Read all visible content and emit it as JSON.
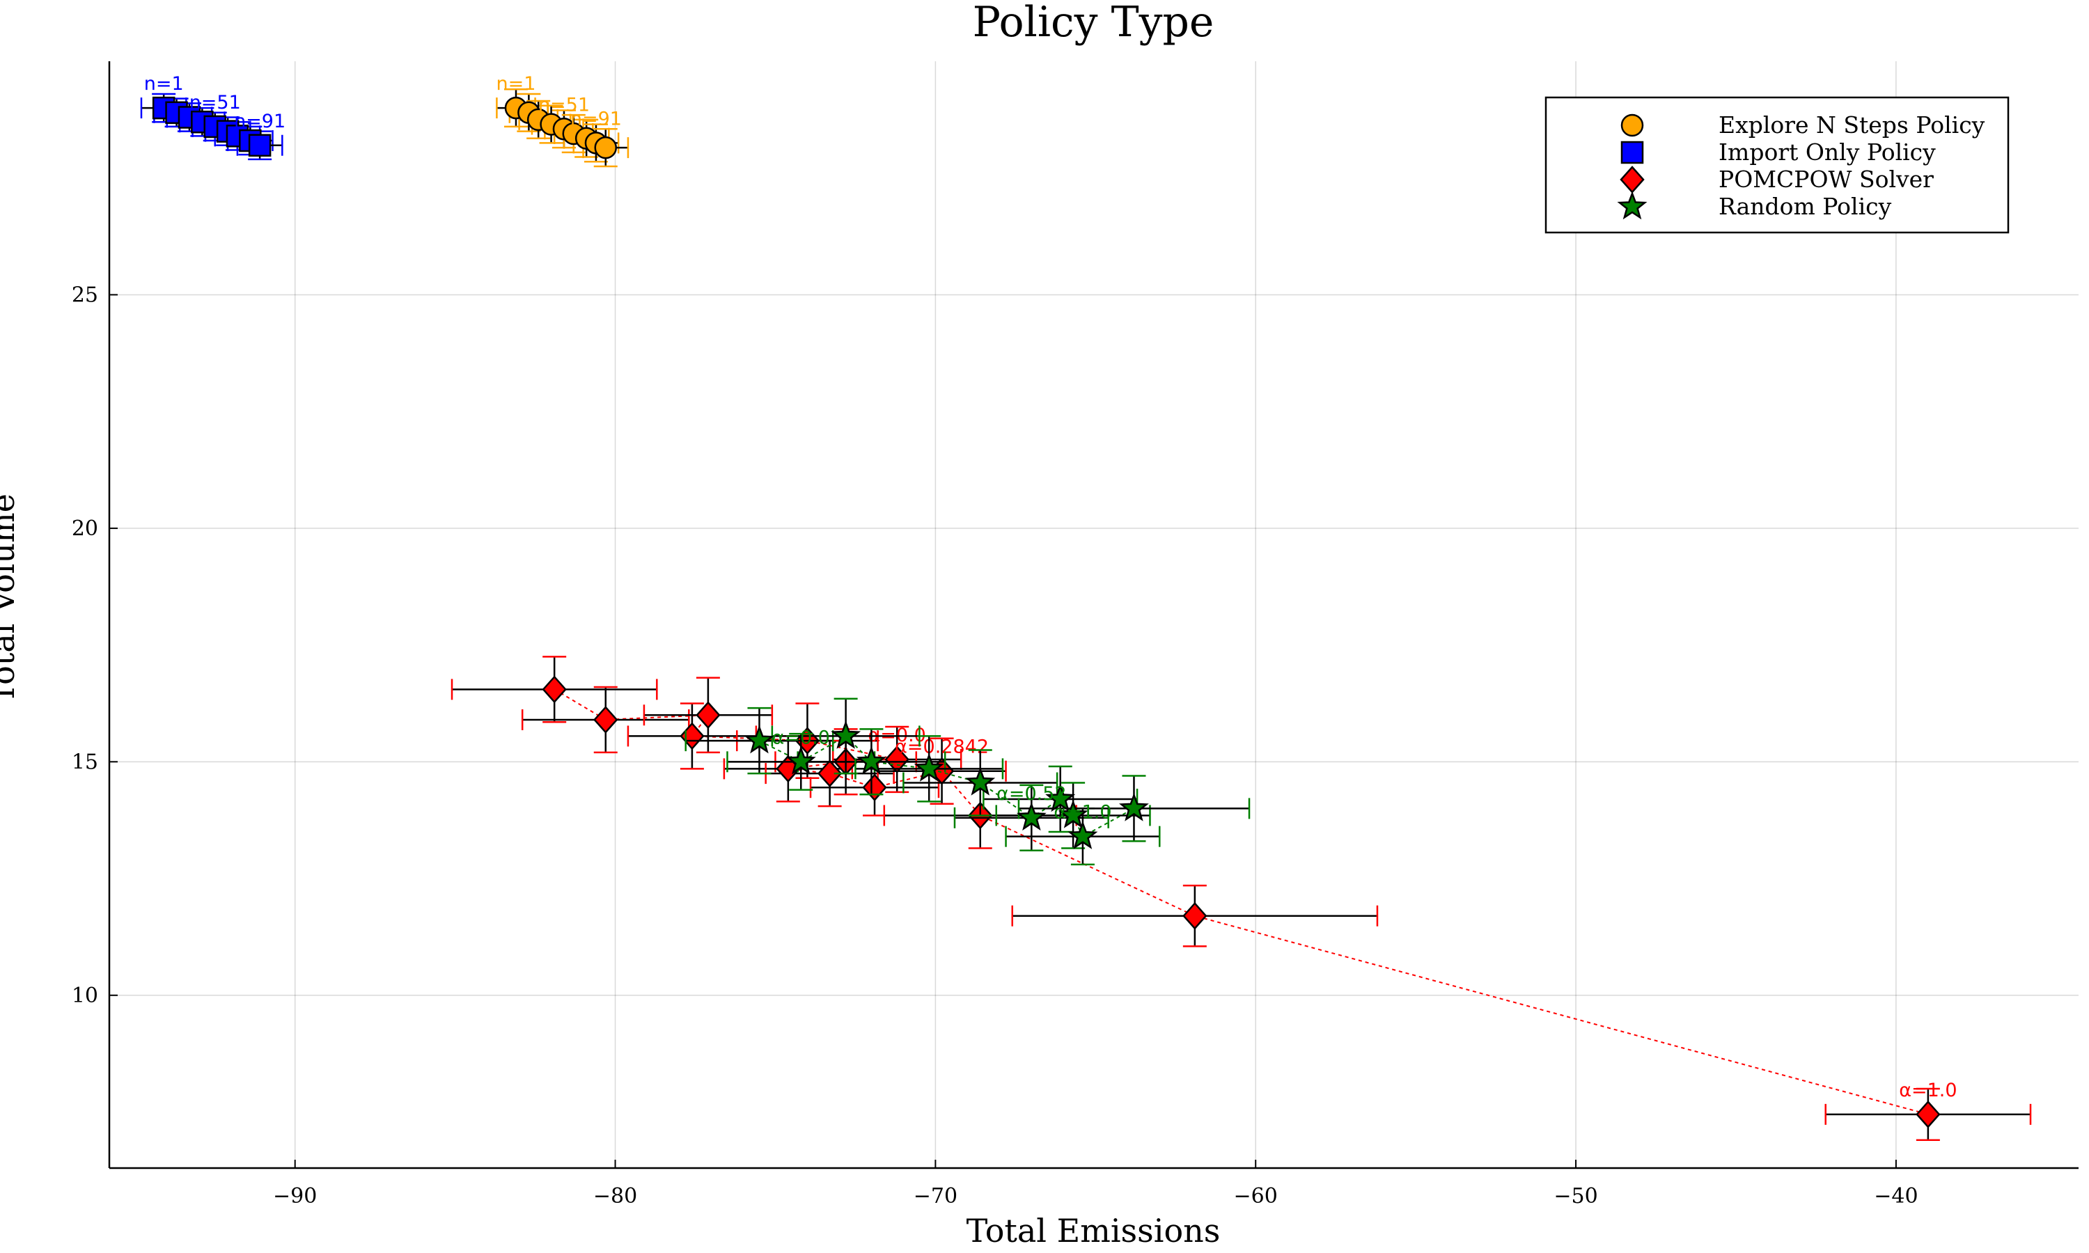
{
  "chart_data": {
    "type": "scatter",
    "title": "Policy Type",
    "xlabel": "Total Emissions",
    "ylabel": "Total Volume",
    "xlim": [
      -95.8,
      -34.3
    ],
    "ylim": [
      6.3,
      30.0
    ],
    "xticks": [
      -90,
      -80,
      -70,
      -60,
      -50,
      -40
    ],
    "yticks": [
      10,
      15,
      20,
      25
    ],
    "grid": true,
    "legend_position": "top-right",
    "series": [
      {
        "name": "Explore N Steps Policy",
        "marker": "circle",
        "color": "#ffa500",
        "error_color": "#ffa500",
        "connect": false,
        "x": [
          -83.1,
          -82.7,
          -82.4,
          -82.0,
          -81.6,
          -81.3,
          -80.9,
          -80.6,
          -80.3
        ],
        "y": [
          29.0,
          28.9,
          28.75,
          28.65,
          28.55,
          28.45,
          28.35,
          28.25,
          28.15
        ],
        "xerr": [
          0.6,
          0.6,
          0.6,
          0.6,
          0.6,
          0.6,
          0.7,
          0.7,
          0.7
        ],
        "yerr": [
          0.4,
          0.4,
          0.4,
          0.4,
          0.4,
          0.4,
          0.4,
          0.4,
          0.4
        ],
        "labels": [
          {
            "text": "n=1",
            "index": 0
          },
          {
            "text": "n=51",
            "index": 4
          },
          {
            "text": "n=91",
            "index": 7
          }
        ]
      },
      {
        "name": "Import Only Policy",
        "marker": "square",
        "color": "#0000ff",
        "error_color": "#0000ff",
        "connect": false,
        "x": [
          -94.1,
          -93.7,
          -93.3,
          -92.9,
          -92.5,
          -92.1,
          -91.8,
          -91.4,
          -91.1
        ],
        "y": [
          29.0,
          28.9,
          28.8,
          28.7,
          28.6,
          28.5,
          28.4,
          28.3,
          28.2
        ],
        "xerr": [
          0.7,
          0.7,
          0.7,
          0.7,
          0.7,
          0.7,
          0.7,
          0.7,
          0.7
        ],
        "yerr": [
          0.3,
          0.3,
          0.3,
          0.3,
          0.3,
          0.3,
          0.3,
          0.3,
          0.3
        ],
        "labels": [
          {
            "text": "n=1",
            "index": 0
          },
          {
            "text": "n=51",
            "index": 4
          },
          {
            "text": "n=91",
            "index": 8
          }
        ]
      },
      {
        "name": "POMCPOW Solver",
        "marker": "diamond",
        "color": "#ff0000",
        "error_color": "#ff0000",
        "connect": true,
        "line_color": "#ff0000",
        "x": [
          -81.9,
          -80.3,
          -77.1,
          -77.6,
          -74.0,
          -71.2,
          -72.8,
          -74.6,
          -73.3,
          -71.9,
          -69.8,
          -68.6,
          -61.9,
          -39.0
        ],
        "y": [
          16.55,
          15.9,
          16.0,
          15.55,
          15.45,
          15.05,
          15.0,
          14.85,
          14.75,
          14.45,
          14.8,
          13.85,
          11.7,
          7.45
        ],
        "xerr": [
          3.2,
          2.6,
          2.0,
          2.0,
          2.2,
          2.0,
          2.2,
          2.0,
          2.0,
          2.0,
          2.0,
          3.0,
          5.7,
          3.2
        ],
        "yerr": [
          0.7,
          0.7,
          0.8,
          0.7,
          0.8,
          0.7,
          0.7,
          0.7,
          0.7,
          0.6,
          0.7,
          0.7,
          0.65,
          0.55
        ],
        "labels": [
          {
            "text": "α=0.0",
            "index": 5
          },
          {
            "text": "α=0.2842",
            "index": 10
          },
          {
            "text": "α=1.0",
            "index": 13
          }
        ]
      },
      {
        "name": "Random Policy",
        "marker": "star",
        "color": "#008000",
        "error_color": "#008000",
        "connect": true,
        "line_color": "#008000",
        "x": [
          -75.5,
          -74.2,
          -72.8,
          -72.0,
          -70.2,
          -68.6,
          -67.0,
          -66.1,
          -65.7,
          -65.4,
          -63.8
        ],
        "y": [
          15.45,
          15.0,
          15.55,
          15.0,
          14.85,
          14.55,
          13.8,
          14.2,
          13.85,
          13.4,
          14.0
        ],
        "xerr": [
          2.3,
          2.3,
          2.3,
          2.3,
          2.3,
          2.4,
          2.4,
          2.4,
          2.4,
          2.4,
          3.6
        ],
        "yerr": [
          0.7,
          0.6,
          0.8,
          0.7,
          0.7,
          0.7,
          0.7,
          0.7,
          0.7,
          0.6,
          0.7
        ],
        "labels": [
          {
            "text": "α=0.0",
            "index": 1
          },
          {
            "text": "α=0.52",
            "index": 6
          },
          {
            "text": "α=1.0",
            "index": 9
          }
        ]
      }
    ]
  }
}
